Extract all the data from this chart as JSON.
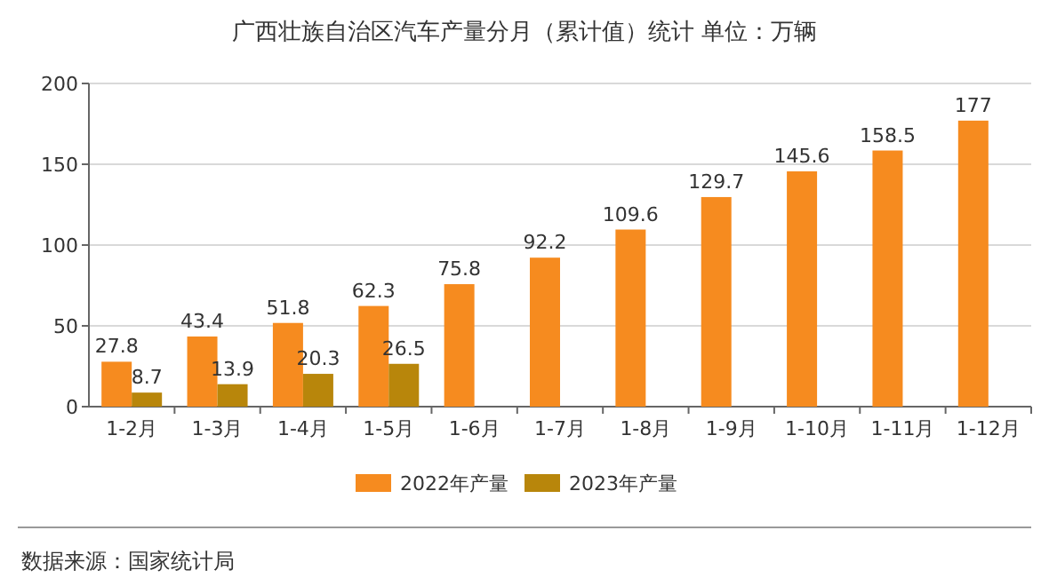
{
  "chart_data": {
    "type": "bar",
    "title": "广西壮族自治区汽车产量分月（累计值）统计 单位：万辆",
    "categories": [
      "1-2月",
      "1-3月",
      "1-4月",
      "1-5月",
      "1-6月",
      "1-7月",
      "1-8月",
      "1-9月",
      "1-10月",
      "1-11月",
      "1-12月"
    ],
    "series": [
      {
        "name": "2022年产量",
        "color": "#f68b1f",
        "values": [
          27.8,
          43.4,
          51.8,
          62.3,
          75.8,
          92.2,
          109.6,
          129.7,
          145.6,
          158.5,
          177
        ]
      },
      {
        "name": "2023年产量",
        "color": "#b8860b",
        "values": [
          8.7,
          13.9,
          20.3,
          26.5,
          null,
          null,
          null,
          null,
          null,
          null,
          null
        ]
      }
    ],
    "ylim": [
      0,
      200
    ],
    "yticks": [
      0,
      50,
      100,
      150,
      200
    ],
    "grid": "y",
    "legend": "bottom",
    "data_labels": true,
    "annotations": [
      "数据来源：国家统计局"
    ]
  }
}
